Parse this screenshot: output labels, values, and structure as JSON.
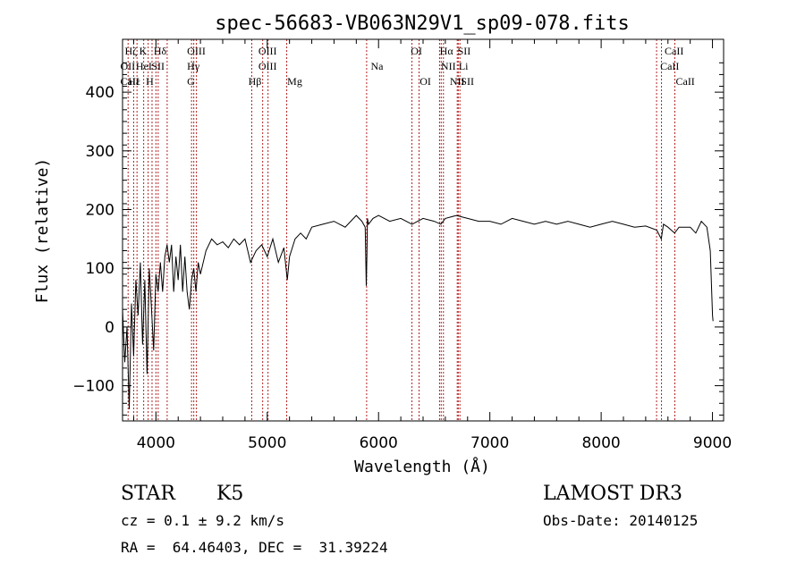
{
  "chart_data": {
    "type": "line",
    "title": "spec-56683-VB063N29V1_sp09-078.fits",
    "xlabel": "Wavelength (Å)",
    "ylabel": "Flux (relative)",
    "xlim": [
      3700,
      9100
    ],
    "ylim": [
      -160,
      490
    ],
    "x_ticks": [
      4000,
      5000,
      6000,
      7000,
      8000,
      9000
    ],
    "y_ticks": [
      -100,
      0,
      100,
      200,
      300,
      400
    ],
    "grid": false,
    "line_color": "#000000",
    "marker_color": "#b22222",
    "series": [
      {
        "x": [
          3700,
          3720,
          3740,
          3760,
          3780,
          3800,
          3820,
          3840,
          3860,
          3880,
          3900,
          3920,
          3940,
          3960,
          3980,
          4000,
          4020,
          4040,
          4060,
          4080,
          4100,
          4120,
          4140,
          4160,
          4180,
          4200,
          4220,
          4240,
          4260,
          4280,
          4300,
          4320,
          4340,
          4360,
          4380,
          4400,
          4450,
          4500,
          4550,
          4600,
          4650,
          4700,
          4750,
          4800,
          4850,
          4900,
          4950,
          5000,
          5050,
          5100,
          5150,
          5180,
          5200,
          5250,
          5300,
          5350,
          5400,
          5500,
          5600,
          5700,
          5800,
          5850,
          5880,
          5890,
          5895,
          5900,
          5910,
          5950,
          6000,
          6100,
          6200,
          6300,
          6400,
          6500,
          6560,
          6600,
          6700,
          6800,
          6900,
          7000,
          7100,
          7200,
          7300,
          7400,
          7500,
          7600,
          7700,
          7800,
          7900,
          8000,
          8100,
          8200,
          8300,
          8400,
          8500,
          8540,
          8560,
          8600,
          8660,
          8700,
          8800,
          8850,
          8900,
          8950,
          8980,
          9000,
          9005
        ],
        "y": [
          30,
          -60,
          0,
          -140,
          40,
          -50,
          80,
          20,
          110,
          -30,
          80,
          -80,
          100,
          30,
          -40,
          90,
          60,
          110,
          60,
          120,
          140,
          110,
          140,
          60,
          120,
          80,
          140,
          60,
          120,
          60,
          30,
          80,
          100,
          60,
          110,
          90,
          130,
          150,
          140,
          145,
          135,
          150,
          140,
          150,
          110,
          130,
          140,
          120,
          150,
          110,
          135,
          80,
          120,
          150,
          160,
          150,
          170,
          175,
          180,
          170,
          190,
          180,
          170,
          70,
          120,
          185,
          175,
          185,
          190,
          180,
          185,
          175,
          185,
          180,
          175,
          185,
          190,
          185,
          180,
          180,
          175,
          185,
          180,
          175,
          180,
          175,
          180,
          175,
          170,
          175,
          180,
          175,
          170,
          172,
          165,
          150,
          175,
          170,
          160,
          170,
          170,
          160,
          180,
          170,
          130,
          20,
          10
        ]
      }
    ],
    "lines": [
      {
        "name": "Hζ",
        "w": 3750
      },
      {
        "name": "CaII H",
        "w": 3800
      },
      {
        "name": "OII",
        "w": 3830
      },
      {
        "name": "K",
        "w": 3890
      },
      {
        "name": "Hε",
        "w": 3930
      },
      {
        "name": "HeI",
        "w": 3965
      },
      {
        "name": "H",
        "w": 4000
      },
      {
        "name": "SII",
        "w": 4020
      },
      {
        "name": "Hδ",
        "w": 4101
      },
      {
        "name": "OIII",
        "w": 4320
      },
      {
        "name": "Hγ",
        "w": 4340
      },
      {
        "name": "G",
        "w": 4364
      },
      {
        "name": "Hβ",
        "w": 4861
      },
      {
        "name": "OIII",
        "w": 4959
      },
      {
        "name": "OIII",
        "w": 5007
      },
      {
        "name": "Mg",
        "w": 5175
      },
      {
        "name": "Na",
        "w": 5893
      },
      {
        "name": "OI",
        "w": 6300
      },
      {
        "name": "OI",
        "w": 6364
      },
      {
        "name": "NII",
        "w": 6548
      },
      {
        "name": "Hα",
        "w": 6563
      },
      {
        "name": "NII",
        "w": 6583
      },
      {
        "name": "SII",
        "w": 6716
      },
      {
        "name": "Li",
        "w": 6707
      },
      {
        "name": "SII",
        "w": 6731
      },
      {
        "name": "CaII",
        "w": 8498
      },
      {
        "name": "CaII",
        "w": 8542
      },
      {
        "name": "CaII",
        "w": 8662
      }
    ],
    "line_labels": [
      {
        "text": "Hζ",
        "w": 3720,
        "row": 0
      },
      {
        "text": "K",
        "w": 3850,
        "row": 0
      },
      {
        "text": "Hδ",
        "w": 3980,
        "row": 0
      },
      {
        "text": "OIII",
        "w": 4280,
        "row": 0
      },
      {
        "text": "OIII",
        "w": 4920,
        "row": 0
      },
      {
        "text": "OI",
        "w": 6290,
        "row": 0
      },
      {
        "text": "Hα",
        "w": 6550,
        "row": 0
      },
      {
        "text": "SII",
        "w": 6710,
        "row": 0
      },
      {
        "text": "CaII",
        "w": 8570,
        "row": 0
      },
      {
        "text": "OII",
        "w": 3680,
        "row": 1
      },
      {
        "text": "HeI",
        "w": 3820,
        "row": 1
      },
      {
        "text": "SII",
        "w": 3960,
        "row": 1
      },
      {
        "text": "Hγ",
        "w": 4280,
        "row": 1
      },
      {
        "text": "OIII",
        "w": 4920,
        "row": 1
      },
      {
        "text": "Na",
        "w": 5930,
        "row": 1
      },
      {
        "text": "NII",
        "w": 6560,
        "row": 1
      },
      {
        "text": "Li",
        "w": 6720,
        "row": 1
      },
      {
        "text": "CaII",
        "w": 8530,
        "row": 1
      },
      {
        "text": "CaII",
        "w": 3680,
        "row": 2
      },
      {
        "text": "Hε",
        "w": 3750,
        "row": 2
      },
      {
        "text": "H",
        "w": 3910,
        "row": 2
      },
      {
        "text": "G",
        "w": 4280,
        "row": 2
      },
      {
        "text": "Hβ",
        "w": 4830,
        "row": 2
      },
      {
        "text": "Mg",
        "w": 5180,
        "row": 2
      },
      {
        "text": "OI",
        "w": 6370,
        "row": 2
      },
      {
        "text": "NII",
        "w": 6640,
        "row": 2
      },
      {
        "text": "SII",
        "w": 6740,
        "row": 2
      },
      {
        "text": "CaII",
        "w": 8670,
        "row": 2
      }
    ]
  },
  "info": {
    "obj_class": "STAR",
    "subclass": "K5",
    "survey": "LAMOST DR3",
    "cz": "cz = 0.1 ± 9.2 km/s",
    "obs_date": "Obs-Date: 20140125",
    "coords": "RA =  64.46403, DEC =  31.39224"
  }
}
